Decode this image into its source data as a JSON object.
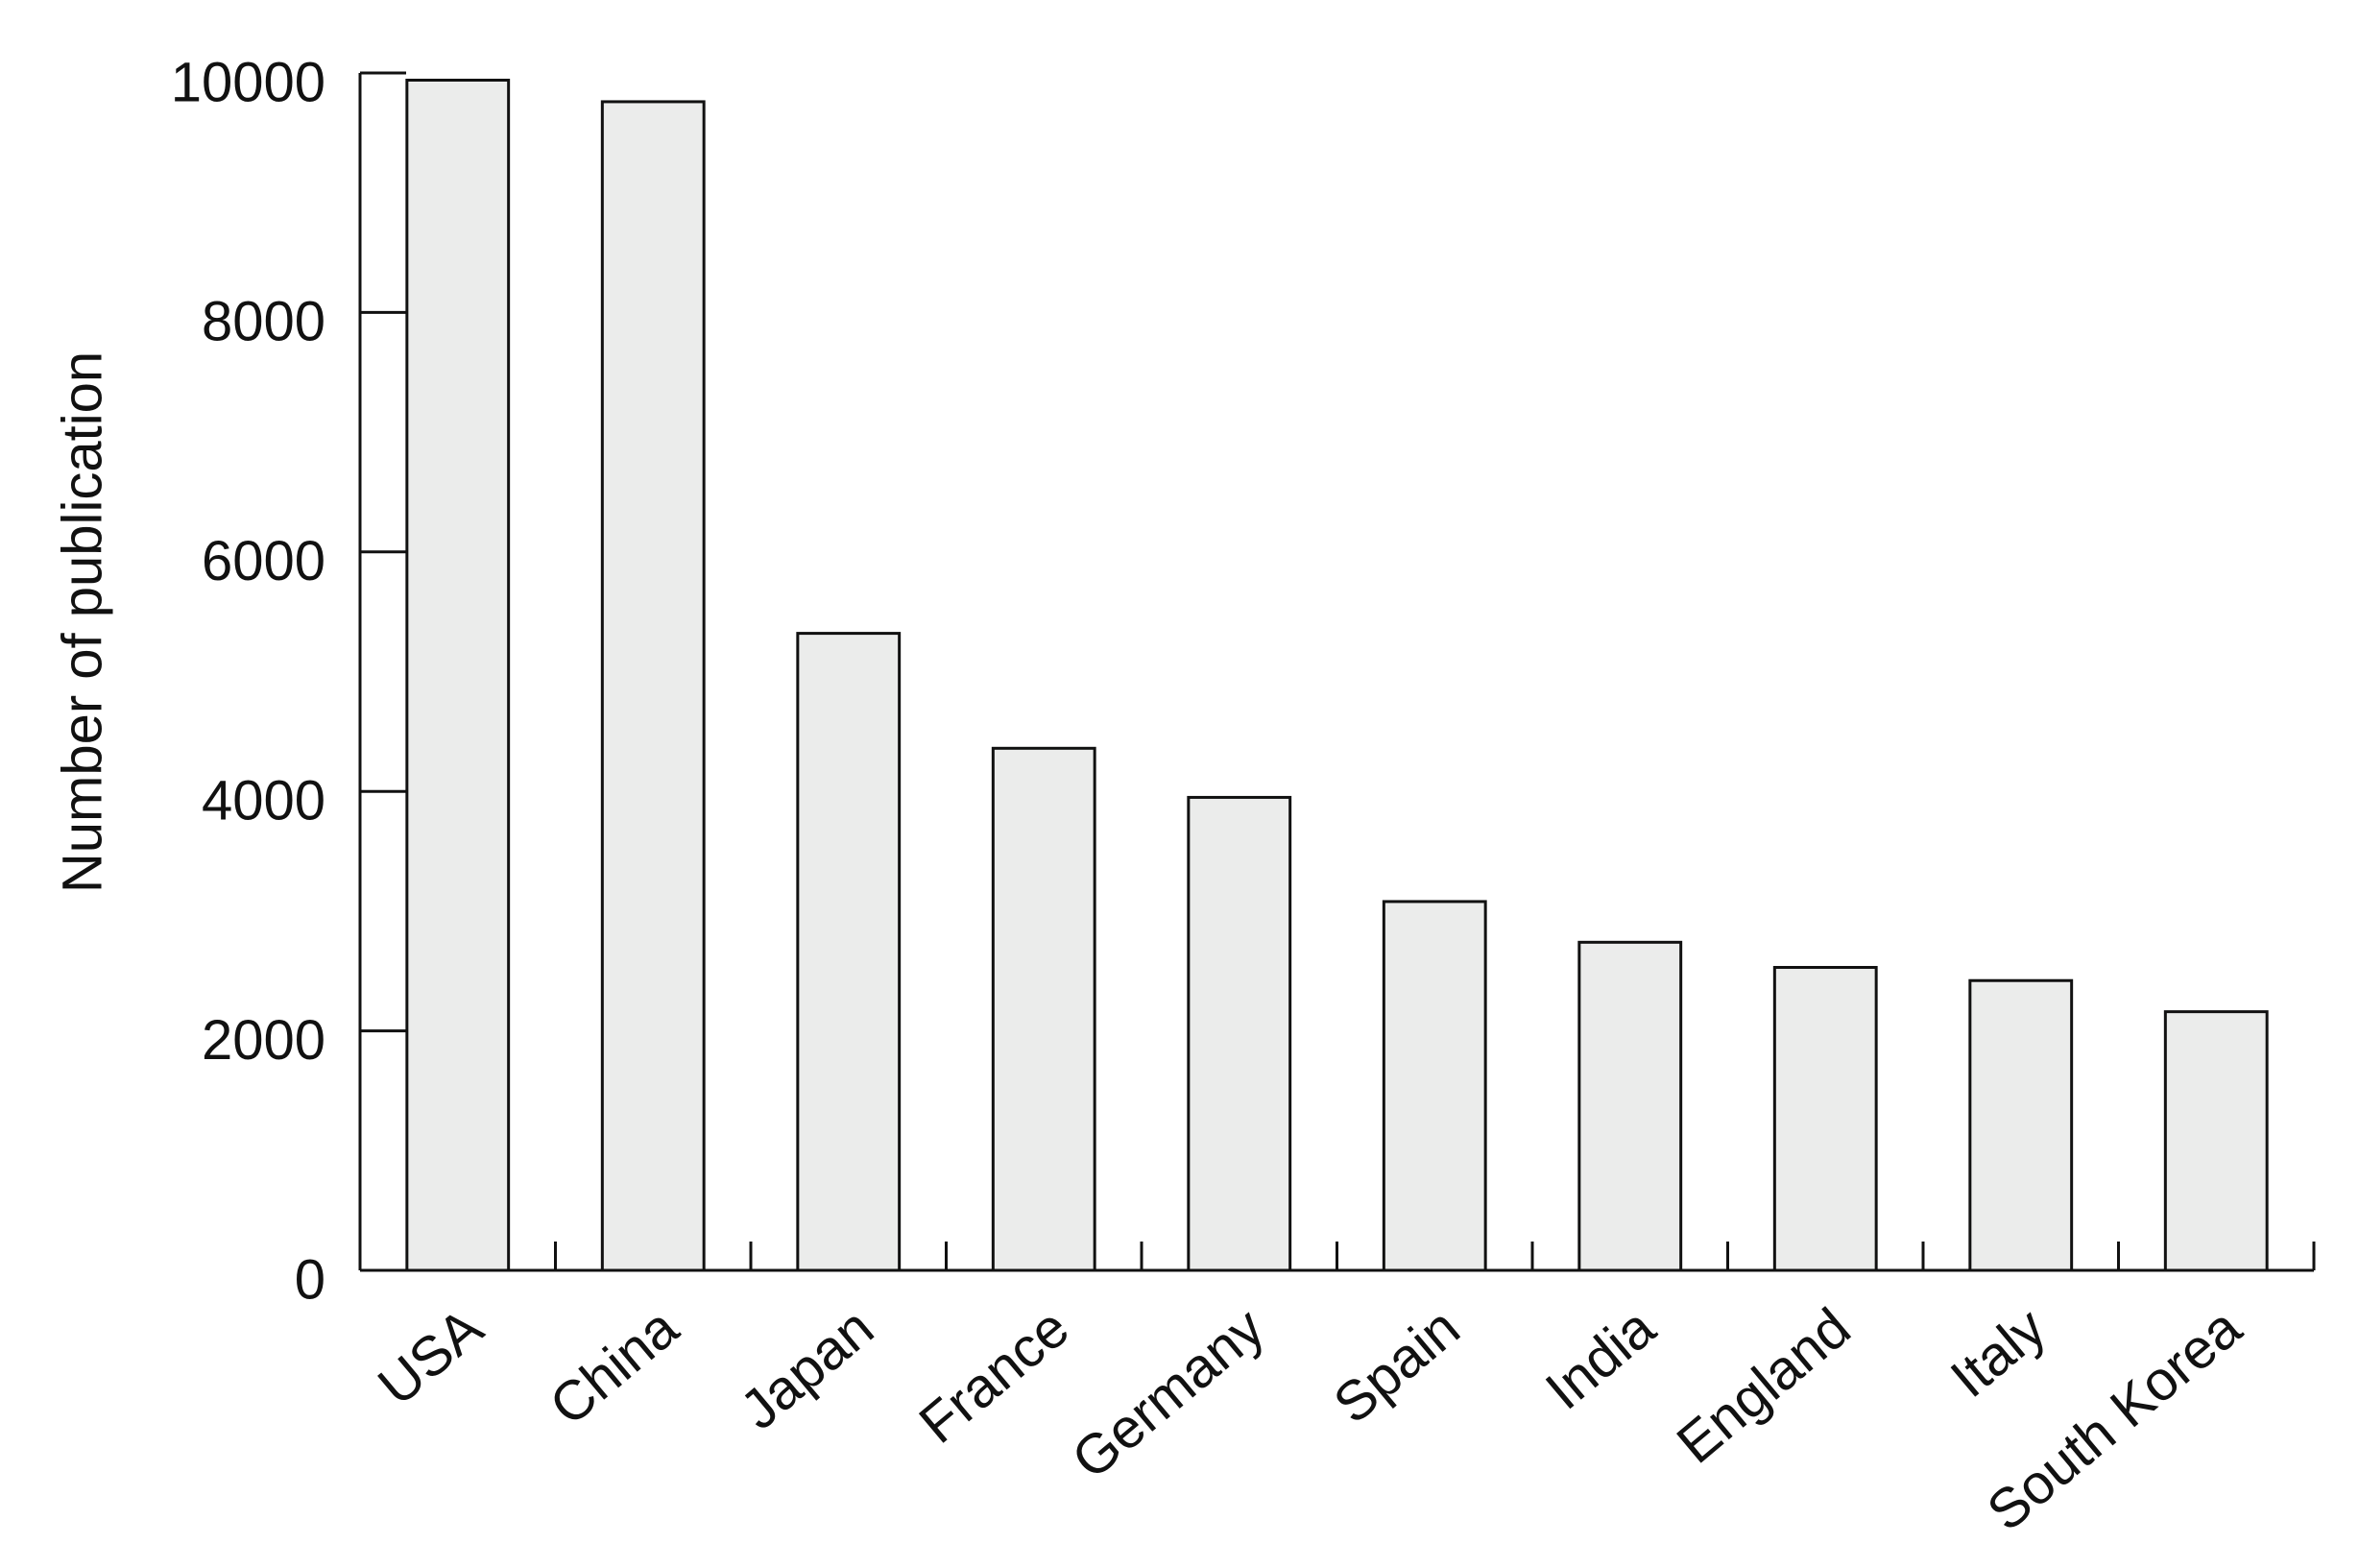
{
  "chart_data": {
    "type": "bar",
    "y_label": "Number of publication",
    "categories": [
      "USA",
      "China",
      "Japan",
      "France",
      "Germany",
      "Spain",
      "India",
      "England",
      "Italy",
      "South Korea"
    ],
    "values": [
      9940,
      9760,
      5320,
      4360,
      3950,
      3080,
      2740,
      2530,
      2420,
      2160
    ],
    "color": "#ebeceb",
    "ylim": [
      0,
      10000
    ],
    "yticks": [
      0,
      2000,
      4000,
      6000,
      8000,
      10000
    ],
    "grid": false
  }
}
